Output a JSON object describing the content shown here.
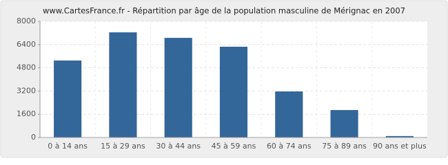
{
  "chart_data": {
    "type": "bar",
    "title": "www.CartesFrance.fr - Répartition par âge de la population masculine de Mérignac en 2007",
    "categories": [
      "0 à 14 ans",
      "15 à 29 ans",
      "30 à 44 ans",
      "45 à 59 ans",
      "60 à 74 ans",
      "75 à 89 ans",
      "90 ans et plus"
    ],
    "values": [
      5300,
      7240,
      6860,
      6250,
      3170,
      1890,
      100
    ],
    "color": "#336699",
    "ylim": [
      0,
      8000
    ],
    "yticks": [
      0,
      1600,
      3200,
      4800,
      6400,
      8000
    ],
    "grid": true
  }
}
